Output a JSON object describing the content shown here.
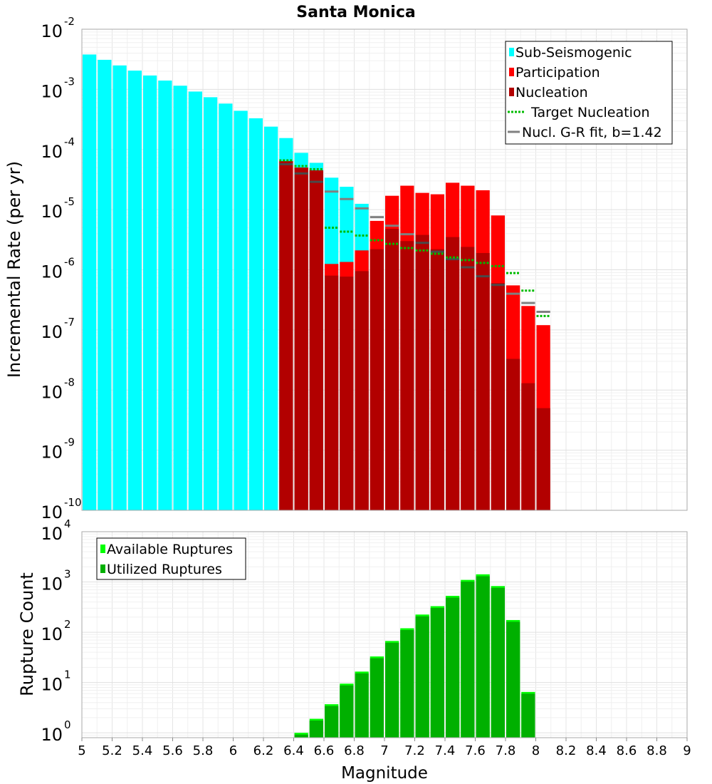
{
  "chart_data": [
    {
      "type": "bar",
      "title": "Santa Monica",
      "xlabel": "",
      "ylabel": "Incremental Rate (per yr)",
      "y_scale": "log",
      "xlim": [
        5,
        9
      ],
      "ylim": [
        1e-10,
        0.01
      ],
      "y_ticks": [
        {
          "base": "10",
          "exp": "-10"
        },
        {
          "base": "10",
          "exp": "-9"
        },
        {
          "base": "10",
          "exp": "-8"
        },
        {
          "base": "10",
          "exp": "-7"
        },
        {
          "base": "10",
          "exp": "-6"
        },
        {
          "base": "10",
          "exp": "-5"
        },
        {
          "base": "10",
          "exp": "-4"
        },
        {
          "base": "10",
          "exp": "-3"
        },
        {
          "base": "10",
          "exp": "-2"
        }
      ],
      "legend": [
        {
          "label": "Sub-Seismogenic",
          "color": "#00ffff",
          "marker": "box"
        },
        {
          "label": "Participation",
          "color": "#ff0000",
          "marker": "box"
        },
        {
          "label": "Nucleation",
          "color": "#b20000",
          "marker": "box"
        },
        {
          "label": "Target Nucleation",
          "color": "#00bb00",
          "marker": "dotted-line"
        },
        {
          "label": "Nucl. G-R fit, b=1.42",
          "color": "#808080",
          "marker": "solid-line"
        }
      ],
      "legend_position": "top-right",
      "colors": {
        "sub_seismogenic": "#00ffff",
        "participation": "#ff0000",
        "nucleation": "#b20000",
        "target": "#00bb00",
        "gr_fit": "#808080",
        "gr_fit_dark": "#4a4a4a"
      },
      "series": [
        {
          "name": "Sub-Seismogenic",
          "x": [
            5.05,
            5.15,
            5.25,
            5.35,
            5.45,
            5.55,
            5.65,
            5.75,
            5.85,
            5.95,
            6.05,
            6.15,
            6.25,
            6.35,
            6.45,
            6.55,
            6.65,
            6.75,
            6.85
          ],
          "values": [
            0.0038,
            0.0031,
            0.0025,
            0.00205,
            0.0017,
            0.0014,
            0.00115,
            0.00092,
            0.00074,
            0.00058,
            0.00044,
            0.00033,
            0.00024,
            0.000155,
            8.8e-05,
            6e-05,
            3.4e-05,
            2.4e-05,
            1.25e-05
          ]
        },
        {
          "name": "Participation",
          "x": [
            6.35,
            6.45,
            6.55,
            6.65,
            6.75,
            6.85,
            6.95,
            7.05,
            7.15,
            7.25,
            7.35,
            7.45,
            7.55,
            7.65,
            7.75,
            7.85,
            7.95,
            8.05
          ],
          "values": [
            6.4e-05,
            5e-05,
            4.5e-05,
            1.25e-06,
            1.35e-06,
            2.1e-06,
            6.5e-06,
            1.7e-05,
            2.5e-05,
            1.9e-05,
            1.8e-05,
            2.8e-05,
            2.5e-05,
            2.1e-05,
            8e-06,
            5.5e-07,
            2.5e-07,
            1.2e-07
          ]
        },
        {
          "name": "Nucleation",
          "x": [
            6.35,
            6.45,
            6.55,
            6.65,
            6.75,
            6.85,
            6.95,
            7.05,
            7.15,
            7.25,
            7.35,
            7.45,
            7.55,
            7.65,
            7.75,
            7.85,
            7.95,
            8.05
          ],
          "values": [
            6.4e-05,
            5e-05,
            4.5e-05,
            8e-07,
            7.7e-07,
            9.5e-07,
            2.2e-06,
            4.8e-06,
            3e-06,
            3.8e-06,
            2.2e-06,
            3.5e-06,
            2.4e-06,
            1.9e-06,
            6e-07,
            3.3e-08,
            1.3e-08,
            5e-09
          ]
        },
        {
          "name": "Target Nucleation",
          "x": [
            6.35,
            6.45,
            6.55,
            6.65,
            6.75,
            6.85,
            6.95,
            7.05,
            7.15,
            7.25,
            7.35,
            7.45,
            7.55,
            7.65,
            7.75,
            7.85,
            7.95,
            8.05
          ],
          "values": [
            6.6e-05,
            5.3e-05,
            4.7e-05,
            5e-06,
            4.3e-06,
            3.7e-06,
            3.1e-06,
            2.7e-06,
            2.3e-06,
            2.1e-06,
            1.85e-06,
            1.6e-06,
            1.45e-06,
            1.3e-06,
            1.15e-06,
            8.8e-07,
            4.5e-07,
            1.7e-07
          ]
        },
        {
          "name": "Nucl. G-R fit, b=1.42",
          "x": [
            6.35,
            6.45,
            6.55,
            6.65,
            6.75,
            6.85,
            6.95,
            7.05,
            7.15,
            7.25,
            7.35,
            7.45,
            7.55,
            7.65,
            7.75,
            7.85,
            7.95,
            8.05
          ],
          "values": [
            5.7e-05,
            4e-05,
            2.9e-05,
            2e-05,
            1.5e-05,
            1.05e-05,
            7.5e-06,
            5.4e-06,
            3.9e-06,
            2.8e-06,
            2e-06,
            1.5e-06,
            1.1e-06,
            7.8e-07,
            5.6e-07,
            4e-07,
            2.8e-07,
            2e-07
          ]
        }
      ]
    },
    {
      "type": "bar",
      "title": "",
      "xlabel": "Magnitude",
      "ylabel": "Rupture Count",
      "y_scale": "log",
      "xlim": [
        5,
        9
      ],
      "ylim": [
        0.8,
        10000
      ],
      "x_ticks": [
        "5",
        "5.2",
        "5.4",
        "5.6",
        "5.8",
        "6",
        "6.2",
        "6.4",
        "6.6",
        "6.8",
        "7",
        "7.2",
        "7.4",
        "7.6",
        "7.8",
        "8",
        "8.2",
        "8.4",
        "8.6",
        "8.8",
        "9"
      ],
      "y_ticks": [
        {
          "base": "10",
          "exp": "0"
        },
        {
          "base": "10",
          "exp": "1"
        },
        {
          "base": "10",
          "exp": "2"
        },
        {
          "base": "10",
          "exp": "3"
        },
        {
          "base": "10",
          "exp": "4"
        }
      ],
      "legend": [
        {
          "label": "Available Ruptures",
          "color": "#00ff00",
          "marker": "box"
        },
        {
          "label": "Utilized Ruptures",
          "color": "#00b000",
          "marker": "box"
        }
      ],
      "legend_position": "top-left",
      "colors": {
        "available": "#00ff00",
        "utilized": "#00b000"
      },
      "series": [
        {
          "name": "Available Ruptures",
          "x": [
            6.45,
            6.55,
            6.65,
            6.75,
            6.85,
            6.95,
            7.05,
            7.15,
            7.25,
            7.35,
            7.45,
            7.55,
            7.65,
            7.75,
            7.85,
            7.95
          ],
          "values": [
            1.0,
            1.9,
            3.7,
            9.5,
            16.5,
            33,
            67,
            120,
            225,
            330,
            530,
            1100,
            1420,
            830,
            175,
            6.5
          ]
        },
        {
          "name": "Utilized Ruptures",
          "x": [
            6.45,
            6.55,
            6.65,
            6.75,
            6.85,
            6.95,
            7.05,
            7.15,
            7.25,
            7.35,
            7.45,
            7.55,
            7.65,
            7.75,
            7.85,
            7.95
          ],
          "values": [
            1.0,
            1.9,
            3.7,
            9.5,
            16.5,
            33,
            67,
            118,
            215,
            320,
            500,
            1050,
            1300,
            790,
            175,
            6.5
          ]
        }
      ]
    }
  ]
}
